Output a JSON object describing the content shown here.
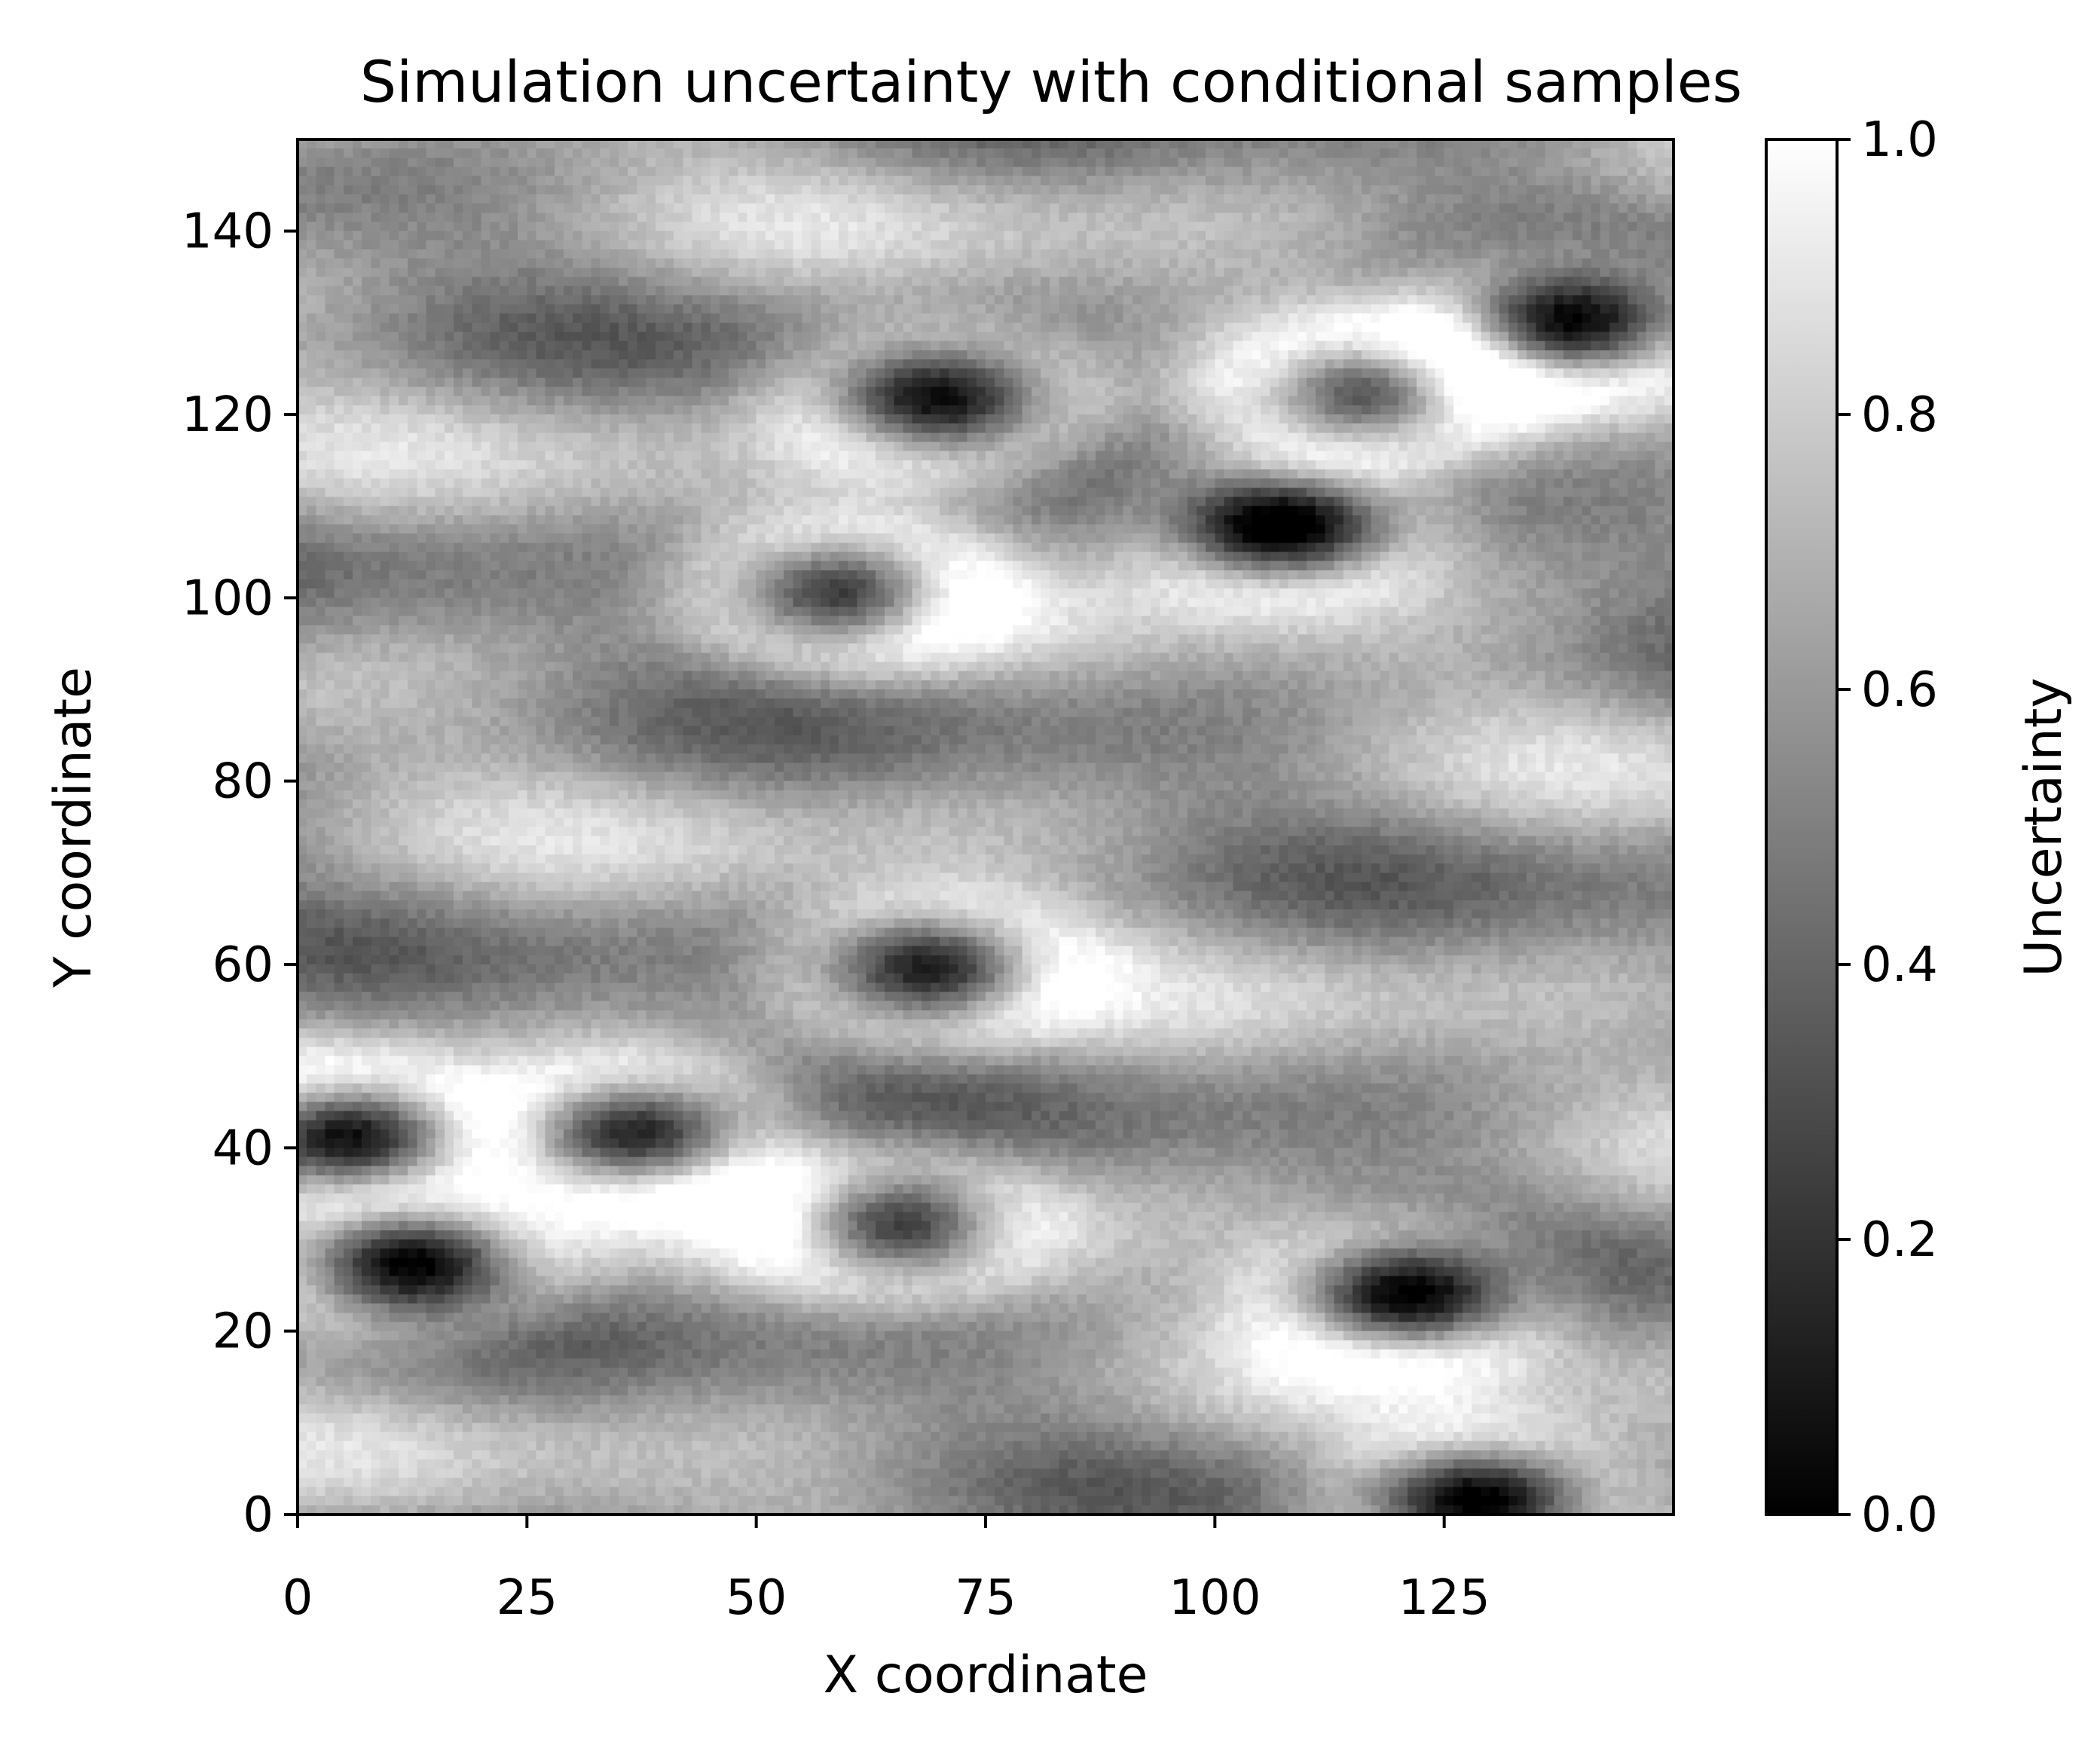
{
  "chart_data": {
    "type": "heatmap",
    "title": "Simulation uncertainty with conditional samples",
    "xlabel": "X coordinate",
    "ylabel": "Y coordinate",
    "xlim": [
      0,
      150
    ],
    "ylim": [
      0,
      150
    ],
    "x_ticks": [
      0,
      25,
      50,
      75,
      100,
      125
    ],
    "x_tick_labels": [
      "0",
      "25",
      "50",
      "75",
      "100",
      "125"
    ],
    "y_ticks": [
      0,
      20,
      40,
      60,
      80,
      100,
      120,
      140
    ],
    "y_tick_labels": [
      "0",
      "20",
      "40",
      "60",
      "80",
      "100",
      "120",
      "140"
    ],
    "colormap": "gray",
    "colorbar": {
      "label": "Uncertainty",
      "range": [
        0.0,
        1.0
      ],
      "ticks": [
        0.0,
        0.2,
        0.4,
        0.6,
        0.8,
        1.0
      ],
      "tick_labels": [
        "0.0",
        "0.2",
        "0.4",
        "0.6",
        "0.8",
        "1.0"
      ],
      "low_color": "#000000",
      "high_color": "#ffffff"
    },
    "conditional_samples": [
      {
        "x": 5,
        "y": 41
      },
      {
        "x": 36,
        "y": 41
      },
      {
        "x": 69,
        "y": 59
      },
      {
        "x": 59,
        "y": 100
      },
      {
        "x": 69,
        "y": 121
      },
      {
        "x": 107,
        "y": 107
      },
      {
        "x": 116,
        "y": 122
      },
      {
        "x": 138,
        "y": 129
      },
      {
        "x": 12,
        "y": 27
      },
      {
        "x": 65,
        "y": 31
      },
      {
        "x": 120,
        "y": 23
      },
      {
        "x": 128,
        "y": 1
      }
    ],
    "baseline_uncertainty": 0.62
  }
}
